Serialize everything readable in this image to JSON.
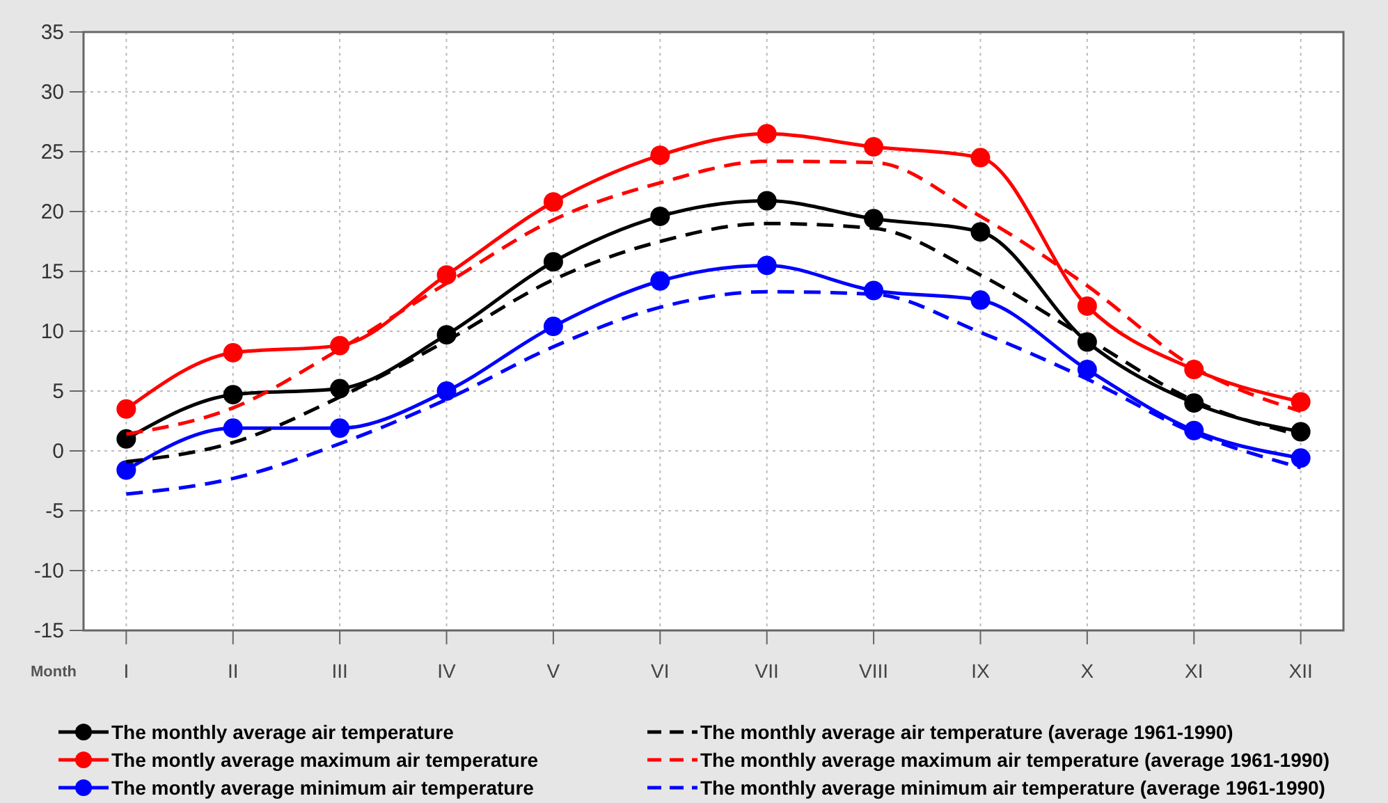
{
  "chart_data": {
    "type": "line",
    "xlabel": "Month",
    "categories": [
      "I",
      "II",
      "III",
      "IV",
      "V",
      "VI",
      "VII",
      "VIII",
      "IX",
      "X",
      "XI",
      "XII"
    ],
    "ylim": [
      -15,
      35
    ],
    "yticks": [
      -15,
      -10,
      -5,
      0,
      5,
      10,
      15,
      20,
      25,
      30,
      35
    ],
    "grid": true,
    "legend": "bottom",
    "series": [
      {
        "name": "The monthly average air temperature",
        "color": "#000000",
        "marker": "circle",
        "line_style": "solid",
        "values": [
          1.0,
          4.7,
          5.2,
          9.7,
          15.8,
          19.6,
          20.9,
          19.4,
          18.3,
          9.1,
          4.0,
          1.6
        ]
      },
      {
        "name": "The montly average maximum air temperature",
        "color": "#ff0000",
        "marker": "circle",
        "line_style": "solid",
        "values": [
          3.5,
          8.2,
          8.8,
          14.7,
          20.8,
          24.7,
          26.5,
          25.4,
          24.5,
          12.1,
          6.8,
          4.1
        ]
      },
      {
        "name": "The montly average minimum air temperature",
        "color": "#0000ff",
        "marker": "circle",
        "line_style": "solid",
        "values": [
          -1.6,
          1.9,
          1.9,
          5.0,
          10.4,
          14.2,
          15.5,
          13.4,
          12.6,
          6.8,
          1.7,
          -0.6
        ]
      },
      {
        "name": "The monthly average air temperature (average 1961-1990)",
        "color": "#000000",
        "marker": "none",
        "line_style": "dashed",
        "values": [
          -0.9,
          0.7,
          4.5,
          9.2,
          14.3,
          17.5,
          19.0,
          18.6,
          14.7,
          9.4,
          4.2,
          1.3
        ]
      },
      {
        "name": "The monthly average maximum air temperature (average 1961-1990)",
        "color": "#ff0000",
        "marker": "none",
        "line_style": "dashed",
        "values": [
          1.4,
          3.6,
          8.5,
          14.0,
          19.3,
          22.4,
          24.2,
          24.1,
          19.6,
          13.8,
          7.0,
          3.3
        ]
      },
      {
        "name": "The monthly average minimum air temperature (average 1961-1990)",
        "color": "#0000ff",
        "marker": "none",
        "line_style": "dashed",
        "values": [
          -3.6,
          -2.3,
          0.6,
          4.3,
          8.7,
          12.0,
          13.3,
          13.1,
          9.9,
          6.0,
          1.5,
          -1.4
        ]
      }
    ]
  }
}
